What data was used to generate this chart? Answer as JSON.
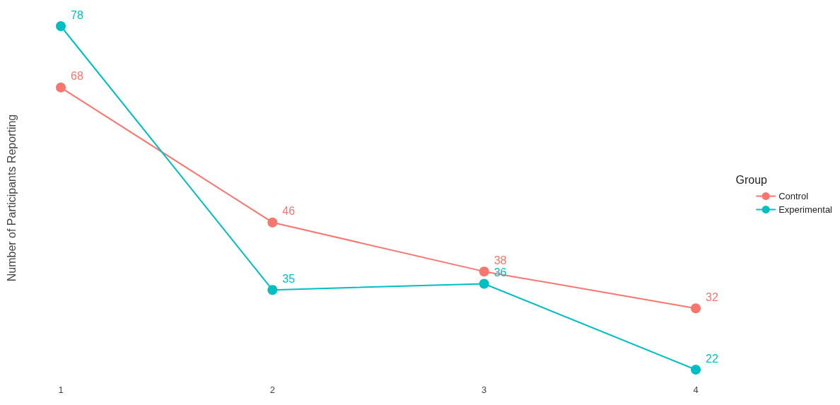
{
  "chart_data": {
    "type": "line",
    "ylabel": "Number of Participants Reporting",
    "legend_title": "Group",
    "categories": [
      "1",
      "2",
      "3",
      "4"
    ],
    "series": [
      {
        "name": "Control",
        "color": "#f8766d",
        "values": [
          68,
          46,
          38,
          32
        ]
      },
      {
        "name": "Experimental",
        "color": "#00bfc4",
        "values": [
          78,
          35,
          36,
          22
        ]
      }
    ],
    "data_labels": true,
    "grid": false,
    "legend": "right",
    "marker": "circle",
    "line_style": "solid"
  }
}
